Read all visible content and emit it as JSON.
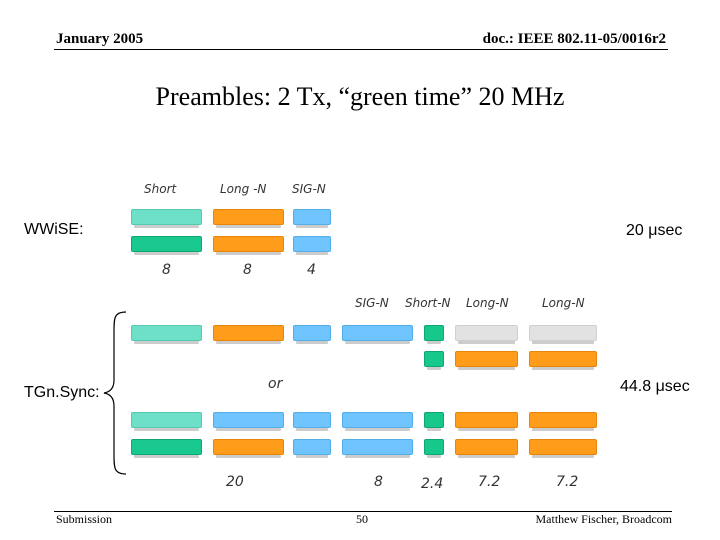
{
  "header": {
    "date": "January 2005",
    "doc_id": "doc.: IEEE 802.11-05/0016r2"
  },
  "title": "Preambles: 2 Tx, “green time” 20 MHz",
  "wwise": {
    "label": "WWiSE:",
    "field_labels": [
      "Short",
      "Long -N",
      "SIG-N"
    ],
    "durations": [
      "8",
      "8",
      "4"
    ],
    "total": "20 μsec"
  },
  "tgnsync": {
    "label": "TGn.Sync:",
    "field_labels": [
      "SIG-N",
      "Short-N",
      "Long-N",
      "Long-N"
    ],
    "or_label": "or",
    "durations": [
      "20",
      "8",
      "2.4",
      "7.2",
      "7.2"
    ],
    "total": "44.8 μsec"
  },
  "footer": {
    "left": "Submission",
    "page": "50",
    "author": "Matthew Fischer, Broadcom"
  },
  "colors": {
    "legacy_short_light": "#6fe0c8",
    "legacy_short_dark": "#19c88e",
    "long": "#ff9c1a",
    "sig": "#6fc4ff"
  }
}
